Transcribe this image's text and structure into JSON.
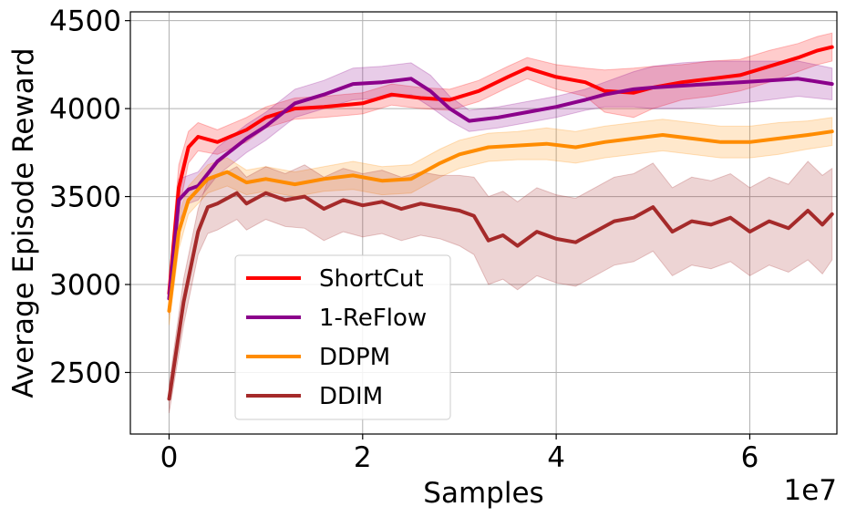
{
  "chart_data": {
    "type": "line",
    "title": "",
    "xlabel": "Samples",
    "ylabel": "Average Episode Reward",
    "x_offset_label": "1e7",
    "xlim": [
      -0.4,
      6.9
    ],
    "ylim": [
      2150,
      4550
    ],
    "xticks": [
      0,
      2,
      4,
      6
    ],
    "xtick_labels": [
      "0",
      "2",
      "4",
      "6"
    ],
    "yticks": [
      2500,
      3000,
      3500,
      4000,
      4500
    ],
    "ytick_labels": [
      "2500",
      "3000",
      "3500",
      "4000",
      "4500"
    ],
    "grid": true,
    "legend_position": "lower-left",
    "series": [
      {
        "name": "ShortCut",
        "color": "#ff0000",
        "x": [
          0,
          0.1,
          0.2,
          0.3,
          0.5,
          0.8,
          1.0,
          1.3,
          1.6,
          2.0,
          2.3,
          2.6,
          2.9,
          3.2,
          3.5,
          3.7,
          4.0,
          4.3,
          4.5,
          4.8,
          5.0,
          5.3,
          5.6,
          5.9,
          6.2,
          6.5,
          6.7,
          6.85
        ],
        "y": [
          2950,
          3550,
          3780,
          3840,
          3810,
          3880,
          3950,
          4000,
          4010,
          4030,
          4080,
          4060,
          4050,
          4100,
          4180,
          4230,
          4180,
          4150,
          4100,
          4090,
          4120,
          4150,
          4170,
          4190,
          4240,
          4290,
          4330,
          4350
        ],
        "band_width": [
          80,
          130,
          90,
          80,
          70,
          70,
          60,
          60,
          60,
          60,
          60,
          60,
          60,
          60,
          60,
          60,
          70,
          80,
          120,
          140,
          120,
          100,
          100,
          90,
          90,
          80,
          80,
          80
        ]
      },
      {
        "name": "1-ReFlow",
        "color": "#8b008b",
        "x": [
          0,
          0.1,
          0.2,
          0.3,
          0.5,
          0.8,
          1.0,
          1.3,
          1.6,
          1.9,
          2.2,
          2.5,
          2.7,
          2.9,
          3.1,
          3.4,
          3.7,
          4.0,
          4.3,
          4.5,
          4.8,
          5.0,
          5.3,
          5.6,
          5.9,
          6.2,
          6.5,
          6.85
        ],
        "y": [
          2920,
          3480,
          3540,
          3560,
          3700,
          3830,
          3900,
          4030,
          4080,
          4140,
          4150,
          4170,
          4100,
          4000,
          3930,
          3950,
          3980,
          4010,
          4050,
          4080,
          4110,
          4120,
          4130,
          4140,
          4150,
          4160,
          4170,
          4140
        ],
        "band_width": [
          90,
          120,
          80,
          80,
          80,
          80,
          80,
          80,
          80,
          90,
          90,
          90,
          90,
          70,
          60,
          60,
          60,
          60,
          60,
          70,
          100,
          120,
          130,
          130,
          120,
          110,
          100,
          90
        ]
      },
      {
        "name": "DDPM",
        "color": "#ff8c00",
        "x": [
          0,
          0.1,
          0.2,
          0.4,
          0.6,
          0.8,
          1.0,
          1.3,
          1.6,
          1.9,
          2.2,
          2.5,
          2.8,
          3.0,
          3.3,
          3.6,
          3.9,
          4.2,
          4.5,
          4.8,
          5.1,
          5.4,
          5.7,
          6.0,
          6.3,
          6.6,
          6.85
        ],
        "y": [
          2850,
          3300,
          3480,
          3600,
          3640,
          3580,
          3600,
          3570,
          3600,
          3620,
          3590,
          3600,
          3690,
          3740,
          3780,
          3790,
          3800,
          3780,
          3810,
          3830,
          3850,
          3830,
          3810,
          3810,
          3830,
          3850,
          3870
        ],
        "band_width": [
          80,
          100,
          80,
          80,
          80,
          70,
          70,
          70,
          70,
          80,
          80,
          80,
          80,
          80,
          80,
          80,
          90,
          90,
          90,
          90,
          90,
          90,
          90,
          90,
          90,
          80,
          80
        ]
      },
      {
        "name": "DDIM",
        "color": "#a52a2a",
        "x": [
          0,
          0.15,
          0.3,
          0.4,
          0.5,
          0.7,
          0.8,
          1.0,
          1.2,
          1.4,
          1.6,
          1.8,
          2.0,
          2.2,
          2.4,
          2.6,
          2.8,
          3.0,
          3.15,
          3.3,
          3.45,
          3.6,
          3.8,
          4.0,
          4.2,
          4.4,
          4.6,
          4.8,
          5.0,
          5.2,
          5.4,
          5.6,
          5.8,
          6.0,
          6.2,
          6.4,
          6.6,
          6.75,
          6.85
        ],
        "y": [
          2350,
          2900,
          3300,
          3440,
          3460,
          3520,
          3460,
          3520,
          3480,
          3500,
          3430,
          3480,
          3450,
          3470,
          3430,
          3460,
          3440,
          3420,
          3390,
          3250,
          3280,
          3220,
          3300,
          3260,
          3240,
          3300,
          3360,
          3380,
          3440,
          3300,
          3360,
          3340,
          3380,
          3300,
          3360,
          3320,
          3420,
          3340,
          3400
        ],
        "band_width": [
          80,
          130,
          130,
          150,
          150,
          150,
          150,
          150,
          150,
          180,
          180,
          180,
          180,
          180,
          180,
          180,
          180,
          200,
          220,
          250,
          250,
          250,
          250,
          250,
          250,
          250,
          250,
          250,
          250,
          250,
          250,
          250,
          250,
          250,
          250,
          250,
          280,
          280,
          260
        ]
      }
    ]
  }
}
